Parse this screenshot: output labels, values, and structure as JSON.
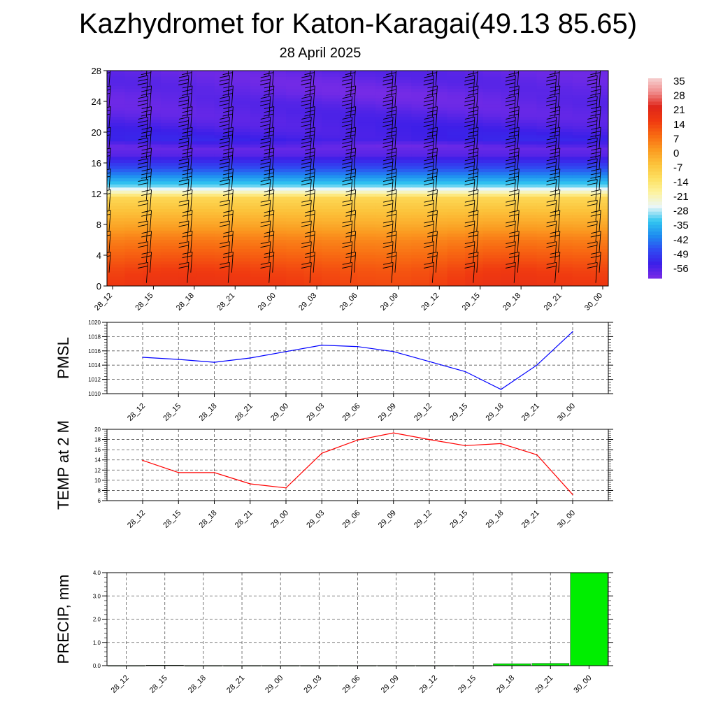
{
  "title": "Kazhydromet for Katon-Karagai(49.13 85.65)",
  "subtitle": "28 April 2025",
  "chart_data": [
    {
      "type": "heatmap",
      "name": "temperature-height-section",
      "x_categories": [
        "28_12",
        "28_15",
        "28_18",
        "28_21",
        "29_00",
        "29_03",
        "29_06",
        "29_09",
        "29_12",
        "29_15",
        "29_18",
        "29_21",
        "30_00"
      ],
      "y_ticks": [
        0,
        4,
        8,
        12,
        16,
        20,
        24,
        28
      ],
      "ylim": [
        0,
        28
      ],
      "colorbar": {
        "labels": [
          "35",
          "28",
          "21",
          "14",
          "7",
          "0",
          "-7",
          "-14",
          "-21",
          "-28",
          "-35",
          "-42",
          "-49",
          "-56"
        ],
        "range": [
          -60,
          38
        ],
        "colors": [
          "#7a2ce6",
          "#3c1fe8",
          "#2f4cf2",
          "#1e8ef0",
          "#32c6f0",
          "#eaf6f8",
          "#fdf3a0",
          "#fde060",
          "#fcc23a",
          "#fb9a20",
          "#f86a12",
          "#f03a10",
          "#e0261a",
          "#f08a8a",
          "#f6d0d0"
        ]
      },
      "profile": {
        "heights": [
          0,
          2,
          4,
          6,
          8,
          10,
          11.5,
          12,
          13,
          15,
          17,
          18,
          19,
          22,
          25,
          28
        ],
        "temps": [
          16,
          14,
          10,
          6,
          0,
          -5,
          -9,
          -18,
          -30,
          -44,
          -56,
          -58,
          -53,
          -56,
          -58,
          -57
        ]
      },
      "wind_barbs": true
    },
    {
      "type": "line",
      "name": "pmsl",
      "ylabel": "PMSL",
      "categories": [
        "28_12",
        "28_15",
        "28_18",
        "28_21",
        "29_00",
        "29_03",
        "29_06",
        "29_09",
        "29_12",
        "29_15",
        "29_18",
        "29_21",
        "30_00"
      ],
      "values": [
        1015.1,
        1014.8,
        1014.4,
        1015.0,
        1015.9,
        1016.8,
        1016.6,
        1015.9,
        1014.5,
        1013.1,
        1010.6,
        1014.0,
        1018.7
      ],
      "ylim": [
        1010,
        1020
      ],
      "yticks": [
        "1010",
        "1012",
        "1014",
        "1016",
        "1018",
        "1020"
      ],
      "color": "#0000ff",
      "grid": true
    },
    {
      "type": "line",
      "name": "temp-2m",
      "ylabel": "TEMP at 2 M",
      "categories": [
        "28_12",
        "28_15",
        "28_18",
        "28_21",
        "29_00",
        "29_03",
        "29_06",
        "29_09",
        "29_12",
        "29_15",
        "29_18",
        "29_21",
        "30_00"
      ],
      "values": [
        13.9,
        11.5,
        11.5,
        9.3,
        8.5,
        15.3,
        17.9,
        19.3,
        18.0,
        16.8,
        17.2,
        15.0,
        7.2
      ],
      "ylim": [
        6,
        20
      ],
      "yticks": [
        "6",
        "8",
        "10",
        "12",
        "14",
        "16",
        "18",
        "20"
      ],
      "color": "#ff0000",
      "grid": true
    },
    {
      "type": "bar",
      "name": "precip",
      "ylabel": "PRECIP, mm",
      "categories": [
        "28_12",
        "28_15",
        "28_18",
        "28_21",
        "29_00",
        "29_03",
        "29_06",
        "29_09",
        "29_12",
        "29_15",
        "29_18",
        "29_21",
        "30_00"
      ],
      "values": [
        0.0,
        0.02,
        0.0,
        0.0,
        0.0,
        0.0,
        0.0,
        0.0,
        0.0,
        0.0,
        0.08,
        0.1,
        4.0
      ],
      "ylim": [
        0,
        4
      ],
      "yticks": [
        "0.0",
        "1.0",
        "2.0",
        "3.0",
        "4.0"
      ],
      "color": "#00ee00",
      "grid": true
    }
  ]
}
